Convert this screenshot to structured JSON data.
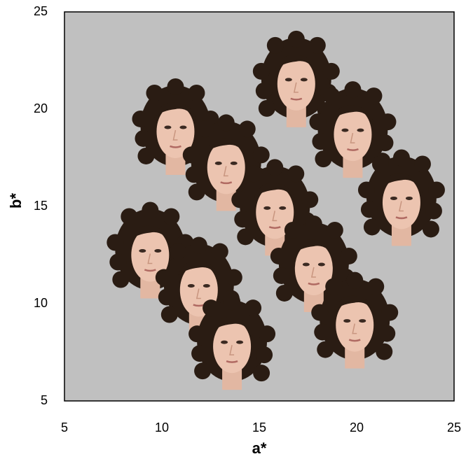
{
  "chart_data": {
    "type": "scatter",
    "x_label": "a*",
    "y_label": "b*",
    "x": [
      16.9,
      10.7,
      19.8,
      13.3,
      22.3,
      15.8,
      9.4,
      17.8,
      11.9,
      19.9,
      13.6
    ],
    "values": [
      21.3,
      18.85,
      18.7,
      17.0,
      15.2,
      14.7,
      12.5,
      11.8,
      10.7,
      8.9,
      7.8
    ],
    "xlim": [
      5,
      25
    ],
    "ylim": [
      5,
      25
    ],
    "xticks": [
      5,
      10,
      15,
      20,
      25
    ],
    "yticks": [
      5,
      10,
      15,
      20,
      25
    ],
    "background": "#c0c0c0"
  }
}
